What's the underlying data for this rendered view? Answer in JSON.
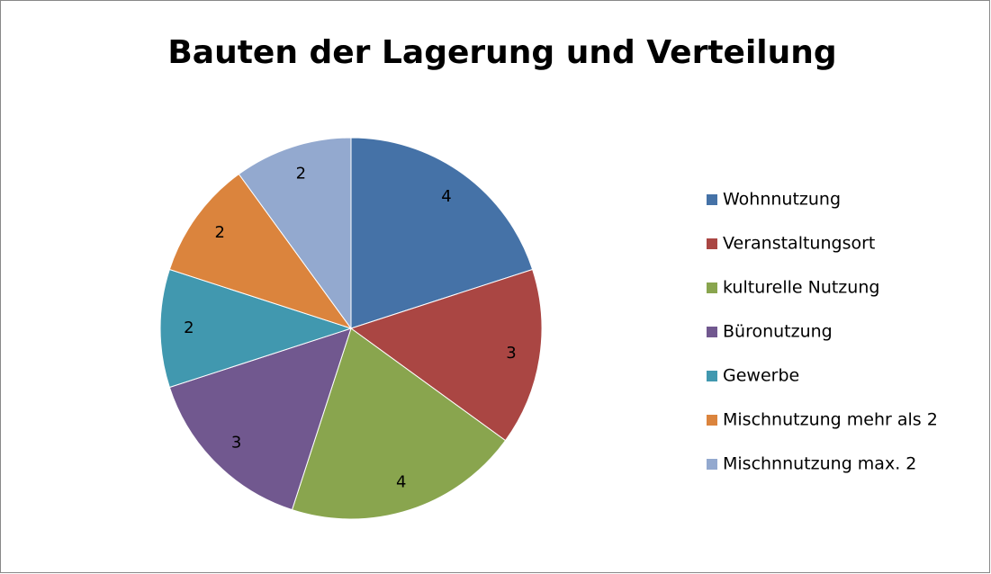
{
  "chart_data": {
    "type": "pie",
    "title": "Bauten der Lagerung und Verteilung",
    "categories": [
      "Wohnnutzung",
      "Veranstaltungsort",
      "kulturelle Nutzung",
      "Büronutzung",
      "Gewerbe",
      "Mischnutzung mehr als 2",
      "Mischnnutzung max. 2"
    ],
    "values": [
      4,
      3,
      4,
      3,
      2,
      2,
      2
    ],
    "colors": [
      "#4572a7",
      "#aa4643",
      "#89a54e",
      "#71588f",
      "#4198af",
      "#db843d",
      "#93a9cf"
    ],
    "legend": "right"
  }
}
